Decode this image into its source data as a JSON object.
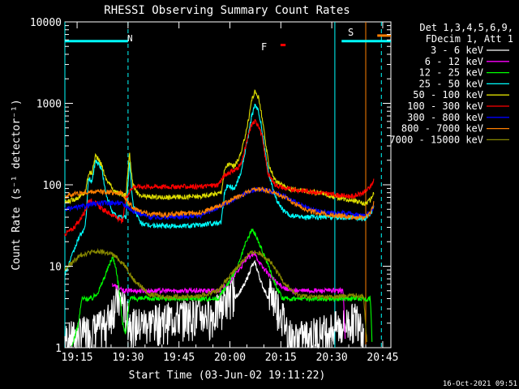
{
  "chart_data": {
    "type": "line",
    "title": "RHESSI Observing Summary Count Rates",
    "xlabel": "Start Time (03-Jun-02 19:11:22)",
    "ylabel": "Count Rate (s⁻¹ detector⁻¹)",
    "yscale": "log",
    "xlim_minutes": [
      0,
      96
    ],
    "ylim": [
      1,
      10000
    ],
    "x_ticks": [
      {
        "label": "19:15",
        "min": 3.6
      },
      {
        "label": "19:30",
        "min": 18.6
      },
      {
        "label": "19:45",
        "min": 33.6
      },
      {
        "label": "20:00",
        "min": 48.6
      },
      {
        "label": "20:15",
        "min": 63.6
      },
      {
        "label": "20:30",
        "min": 78.6
      },
      {
        "label": "20:45",
        "min": 93.6
      }
    ],
    "y_ticks": [
      {
        "label": "1",
        "value": 1
      },
      {
        "label": "10",
        "value": 10
      },
      {
        "label": "100",
        "value": 100
      },
      {
        "label": "1000",
        "value": 1000
      },
      {
        "label": "10000",
        "value": 10000
      }
    ],
    "legend_header": [
      "Det 1,3,4,5,6,9,",
      "FDecim 1, Att 1"
    ],
    "series": [
      {
        "name": "3 - 6 keV",
        "color": "#ffffff",
        "points": [
          [
            0,
            1
          ],
          [
            12,
            1.5
          ],
          [
            14,
            2.5
          ],
          [
            15,
            3
          ],
          [
            17,
            3
          ],
          [
            18,
            2
          ],
          [
            20,
            1.5
          ],
          [
            36,
            2
          ],
          [
            44,
            2
          ],
          [
            47,
            3
          ],
          [
            50,
            4
          ],
          [
            53,
            6
          ],
          [
            55,
            10
          ],
          [
            56,
            11
          ],
          [
            58,
            6
          ],
          [
            60,
            4
          ],
          [
            62,
            3
          ],
          [
            64,
            2
          ],
          [
            65,
            1.5
          ],
          [
            67,
            1
          ],
          [
            82,
            1.5
          ],
          [
            87,
            2
          ],
          [
            88,
            1
          ]
        ]
      },
      {
        "name": "6 - 12 keV",
        "color": "#ff00ff",
        "points": [
          [
            14,
            6
          ],
          [
            17,
            5
          ],
          [
            20,
            5
          ],
          [
            30,
            5
          ],
          [
            40,
            5
          ],
          [
            45,
            5
          ],
          [
            48,
            6
          ],
          [
            52,
            10
          ],
          [
            54,
            13
          ],
          [
            56,
            14
          ],
          [
            58,
            10
          ],
          [
            60,
            8
          ],
          [
            63,
            6
          ],
          [
            66,
            5
          ],
          [
            75,
            5
          ],
          [
            80,
            5
          ],
          [
            82,
            5
          ],
          [
            82.6,
            1
          ]
        ]
      },
      {
        "name": "12 - 25 keV",
        "color": "#00ff00",
        "points": [
          [
            2,
            1
          ],
          [
            4,
            2
          ],
          [
            5,
            4
          ],
          [
            8,
            4
          ],
          [
            10,
            5
          ],
          [
            12,
            8
          ],
          [
            14,
            13
          ],
          [
            15,
            10
          ],
          [
            16,
            5
          ],
          [
            17,
            2
          ],
          [
            18,
            1.5
          ],
          [
            19,
            4
          ],
          [
            22,
            4
          ],
          [
            30,
            4
          ],
          [
            40,
            4
          ],
          [
            45,
            4
          ],
          [
            48,
            6
          ],
          [
            51,
            10
          ],
          [
            53,
            18
          ],
          [
            55,
            28
          ],
          [
            56,
            25
          ],
          [
            58,
            16
          ],
          [
            60,
            10
          ],
          [
            62,
            6
          ],
          [
            64,
            4
          ],
          [
            70,
            4
          ],
          [
            80,
            4
          ],
          [
            85,
            4
          ],
          [
            89,
            4
          ],
          [
            90,
            4
          ],
          [
            90.5,
            1
          ]
        ]
      },
      {
        "name": "25 - 50 keV",
        "color": "#00ffff",
        "points": [
          [
            0,
            8
          ],
          [
            2,
            13
          ],
          [
            4,
            22
          ],
          [
            6,
            30
          ],
          [
            7,
            120
          ],
          [
            8,
            110
          ],
          [
            9,
            200
          ],
          [
            10,
            180
          ],
          [
            11,
            150
          ],
          [
            12,
            80
          ],
          [
            14,
            45
          ],
          [
            16,
            40
          ],
          [
            18,
            40
          ],
          [
            19,
            200
          ],
          [
            20,
            60
          ],
          [
            22,
            35
          ],
          [
            24,
            32
          ],
          [
            30,
            31
          ],
          [
            40,
            32
          ],
          [
            46,
            35
          ],
          [
            47,
            80
          ],
          [
            48,
            100
          ],
          [
            50,
            90
          ],
          [
            52,
            150
          ],
          [
            54,
            400
          ],
          [
            55,
            700
          ],
          [
            56,
            950
          ],
          [
            57,
            800
          ],
          [
            58,
            500
          ],
          [
            59,
            250
          ],
          [
            60,
            140
          ],
          [
            62,
            70
          ],
          [
            64,
            50
          ],
          [
            66,
            42
          ],
          [
            70,
            40
          ],
          [
            75,
            40
          ],
          [
            80,
            40
          ],
          [
            85,
            40
          ],
          [
            88,
            38
          ],
          [
            90,
            42
          ],
          [
            91,
            55
          ]
        ]
      },
      {
        "name": "50 - 100 keV",
        "color": "#dddd00",
        "points": [
          [
            0,
            60
          ],
          [
            2,
            65
          ],
          [
            4,
            70
          ],
          [
            6,
            80
          ],
          [
            7,
            140
          ],
          [
            8,
            140
          ],
          [
            9,
            230
          ],
          [
            10,
            200
          ],
          [
            11,
            170
          ],
          [
            12,
            120
          ],
          [
            15,
            80
          ],
          [
            18,
            75
          ],
          [
            19,
            250
          ],
          [
            20,
            100
          ],
          [
            22,
            72
          ],
          [
            30,
            70
          ],
          [
            40,
            72
          ],
          [
            46,
            80
          ],
          [
            47,
            150
          ],
          [
            48,
            180
          ],
          [
            50,
            170
          ],
          [
            52,
            250
          ],
          [
            54,
            600
          ],
          [
            55,
            1100
          ],
          [
            56,
            1400
          ],
          [
            57,
            1200
          ],
          [
            58,
            700
          ],
          [
            59,
            350
          ],
          [
            60,
            180
          ],
          [
            62,
            110
          ],
          [
            66,
            90
          ],
          [
            70,
            85
          ],
          [
            75,
            80
          ],
          [
            80,
            70
          ],
          [
            85,
            65
          ],
          [
            88,
            58
          ],
          [
            90,
            65
          ],
          [
            91,
            80
          ]
        ]
      },
      {
        "name": "100 - 300 keV",
        "color": "#ff0000",
        "points": [
          [
            0,
            25
          ],
          [
            2,
            28
          ],
          [
            4,
            35
          ],
          [
            6,
            48
          ],
          [
            7,
            65
          ],
          [
            9,
            60
          ],
          [
            11,
            50
          ],
          [
            13,
            45
          ],
          [
            15,
            40
          ],
          [
            17,
            35
          ],
          [
            18,
            70
          ],
          [
            20,
            95
          ],
          [
            25,
            95
          ],
          [
            30,
            95
          ],
          [
            35,
            95
          ],
          [
            40,
            95
          ],
          [
            45,
            100
          ],
          [
            47,
            130
          ],
          [
            48,
            140
          ],
          [
            50,
            150
          ],
          [
            52,
            180
          ],
          [
            54,
            400
          ],
          [
            55,
            550
          ],
          [
            56,
            600
          ],
          [
            57,
            550
          ],
          [
            58,
            400
          ],
          [
            59,
            220
          ],
          [
            60,
            130
          ],
          [
            62,
            100
          ],
          [
            65,
            90
          ],
          [
            70,
            85
          ],
          [
            75,
            80
          ],
          [
            80,
            75
          ],
          [
            85,
            72
          ],
          [
            88,
            80
          ],
          [
            90,
            95
          ],
          [
            91,
            115
          ]
        ]
      },
      {
        "name": "300 - 800 keV",
        "color": "#0000ff",
        "points": [
          [
            0,
            50
          ],
          [
            3,
            52
          ],
          [
            6,
            55
          ],
          [
            8,
            58
          ],
          [
            12,
            60
          ],
          [
            16,
            60
          ],
          [
            17,
            58
          ],
          [
            18,
            55
          ],
          [
            20,
            48
          ],
          [
            25,
            40
          ],
          [
            30,
            40
          ],
          [
            40,
            42
          ],
          [
            44,
            50
          ],
          [
            48,
            60
          ],
          [
            52,
            75
          ],
          [
            55,
            85
          ],
          [
            58,
            88
          ],
          [
            60,
            85
          ],
          [
            64,
            75
          ],
          [
            68,
            60
          ],
          [
            72,
            50
          ],
          [
            76,
            46
          ],
          [
            80,
            45
          ],
          [
            85,
            44
          ],
          [
            88,
            42
          ],
          [
            90,
            45
          ],
          [
            91,
            55
          ]
        ]
      },
      {
        "name": "800 - 7000 keV",
        "color": "#ff7f00",
        "points": [
          [
            0,
            72
          ],
          [
            3,
            78
          ],
          [
            6,
            80
          ],
          [
            9,
            82
          ],
          [
            12,
            82
          ],
          [
            15,
            80
          ],
          [
            17,
            78
          ],
          [
            18,
            65
          ],
          [
            20,
            52
          ],
          [
            25,
            44
          ],
          [
            30,
            43
          ],
          [
            40,
            46
          ],
          [
            44,
            52
          ],
          [
            48,
            62
          ],
          [
            52,
            75
          ],
          [
            55,
            85
          ],
          [
            58,
            88
          ],
          [
            60,
            84
          ],
          [
            64,
            72
          ],
          [
            68,
            58
          ],
          [
            72,
            48
          ],
          [
            76,
            44
          ],
          [
            80,
            42
          ],
          [
            85,
            40
          ],
          [
            88,
            40
          ],
          [
            90,
            45
          ],
          [
            91,
            60
          ]
        ]
      },
      {
        "name": "7000 - 15000 keV",
        "color": "#888800",
        "points": [
          [
            0,
            9
          ],
          [
            3,
            12
          ],
          [
            5,
            14
          ],
          [
            8,
            15
          ],
          [
            11,
            15
          ],
          [
            14,
            14
          ],
          [
            16,
            12
          ],
          [
            18,
            10
          ],
          [
            20,
            7
          ],
          [
            25,
            4.5
          ],
          [
            30,
            4.2
          ],
          [
            40,
            4.3
          ],
          [
            45,
            5
          ],
          [
            48,
            7
          ],
          [
            51,
            10
          ],
          [
            54,
            14
          ],
          [
            56,
            15
          ],
          [
            58,
            14
          ],
          [
            60,
            12
          ],
          [
            62,
            9
          ],
          [
            65,
            6
          ],
          [
            68,
            4.5
          ],
          [
            72,
            4.2
          ],
          [
            80,
            4.2
          ],
          [
            85,
            4.4
          ],
          [
            88,
            4.3
          ],
          [
            89,
            1
          ]
        ]
      }
    ],
    "annotations": [
      {
        "text": "N",
        "color": "#00ffff"
      },
      {
        "text": "F",
        "color": "#ff0000"
      },
      {
        "text": "S",
        "color": "#ff7f00"
      }
    ],
    "flag_bars": [
      {
        "name": "N",
        "color": "#00ffff",
        "y": 5800,
        "from": 0,
        "to": 18.6
      },
      {
        "name": "F",
        "color": "#ff0000",
        "y": 5200,
        "from": 63.5,
        "to": 65
      },
      {
        "name": "S",
        "color": "#00ffff",
        "y": 5800,
        "from": 81.5,
        "to": 96
      },
      {
        "name": "S",
        "color": "#ff7f00",
        "y": 6800,
        "from": 92,
        "to": 96
      }
    ],
    "markers": [
      {
        "color": "#00ffff",
        "x": 0,
        "style": "solid"
      },
      {
        "color": "#00ffff",
        "x": 18.6,
        "style": "dashed"
      },
      {
        "color": "#00ffff",
        "x": 79.5,
        "style": "solid"
      },
      {
        "color": "#ff7f00",
        "x": 88.6,
        "style": "solid"
      },
      {
        "color": "#00ffff",
        "x": 93.2,
        "style": "dashed"
      }
    ],
    "footer_date": "16-Oct-2021 09:51"
  }
}
